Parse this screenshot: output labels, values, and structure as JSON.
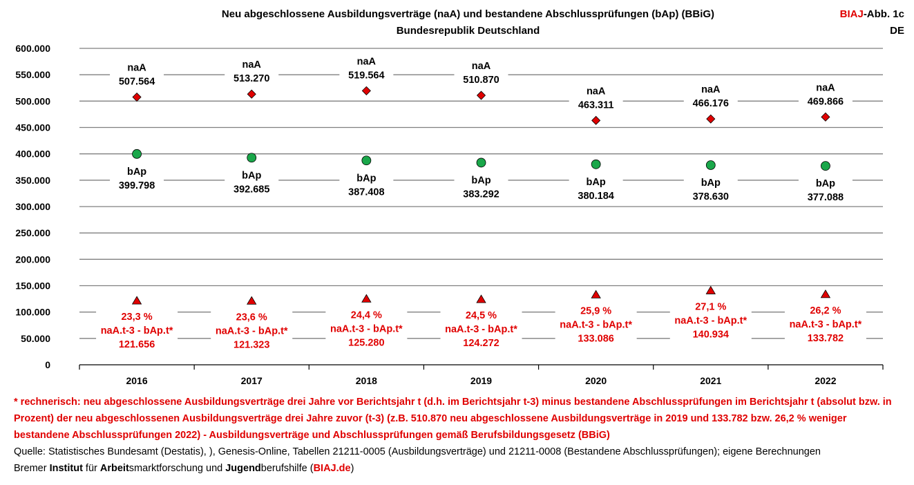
{
  "chart_data": {
    "type": "scatter",
    "title": "Neu abgeschlossene Ausbildungsverträge (naA) und bestandene Abschlussprüfungen (bAp) (BBiG)",
    "subtitle": "Bundesrepublik Deutschland",
    "categories": [
      "2016",
      "2017",
      "2018",
      "2019",
      "2020",
      "2021",
      "2022"
    ],
    "ylim": [
      0,
      600000
    ],
    "yticks": [
      "0",
      "50.000",
      "100.000",
      "150.000",
      "200.000",
      "250.000",
      "300.000",
      "350.000",
      "400.000",
      "450.000",
      "500.000",
      "550.000",
      "600.000"
    ],
    "grid": true,
    "series": [
      {
        "name": "naA",
        "marker": "diamond",
        "color": "#e00000",
        "values": [
          507564,
          513270,
          519564,
          510870,
          463311,
          466176,
          469866
        ],
        "labels": [
          "507.564",
          "513.270",
          "519.564",
          "510.870",
          "463.311",
          "466.176",
          "469.866"
        ]
      },
      {
        "name": "bAp",
        "marker": "circle",
        "color": "#1aa74a",
        "values": [
          399798,
          392685,
          387408,
          383292,
          380184,
          378630,
          377088
        ],
        "labels": [
          "399.798",
          "392.685",
          "387.408",
          "383.292",
          "380.184",
          "378.630",
          "377.088"
        ]
      },
      {
        "name": "naA.t-3 - bAp.t*",
        "marker": "triangle",
        "color": "#e00000",
        "values": [
          121656,
          121323,
          125280,
          124272,
          133086,
          140934,
          133782
        ],
        "labels": [
          "121.656",
          "121.323",
          "125.280",
          "124.272",
          "133.086",
          "140.934",
          "133.782"
        ],
        "percent": [
          "23,3 %",
          "23,6 %",
          "24,4 %",
          "24,5 %",
          "25,9 %",
          "27,1 %",
          "26,2 %"
        ]
      }
    ]
  },
  "header": {
    "corner_brand": "BIAJ",
    "corner_rest": "-Abb. 1c",
    "corner_region": "DE"
  },
  "footnote": {
    "red": "* rechnerisch: neu abgeschlossene Ausbildungsverträge drei Jahre vor Berichtsjahr t (d.h. im Berichtsjahr t-3)  minus bestandene Abschlussprüfungen im Berichtsjahr t (absolut bzw. in Prozent) der neu abgeschlossenen Ausbildungsverträge drei Jahre zuvor (t-3) (z.B. 510.870 neu abgeschlossene Ausbildungsverträge in 2019 und 133.782 bzw. 26,2 % weniger bestandene Abschlussprüfungen 2022)  - Ausbildungsverträge und Abschlussprüfungen gemäß Berufsbildungsgesetz (BBiG)",
    "source": "Quelle: Statistisches Bundesamt (Destatis), ), Genesis-Online, Tabellen 21211-0005 (Ausbildungsverträge) und 21211-0008 (Bestandene Abschlussprüfungen); eigene Berechnungen",
    "org_1": "Bremer ",
    "org_2": "Institut",
    "org_3": " für ",
    "org_4": "Arbeit",
    "org_5": "smarktforschung und ",
    "org_6": "Jugend",
    "org_7": "berufshilfe (",
    "org_8": "BIAJ.de",
    "org_9": ")"
  }
}
